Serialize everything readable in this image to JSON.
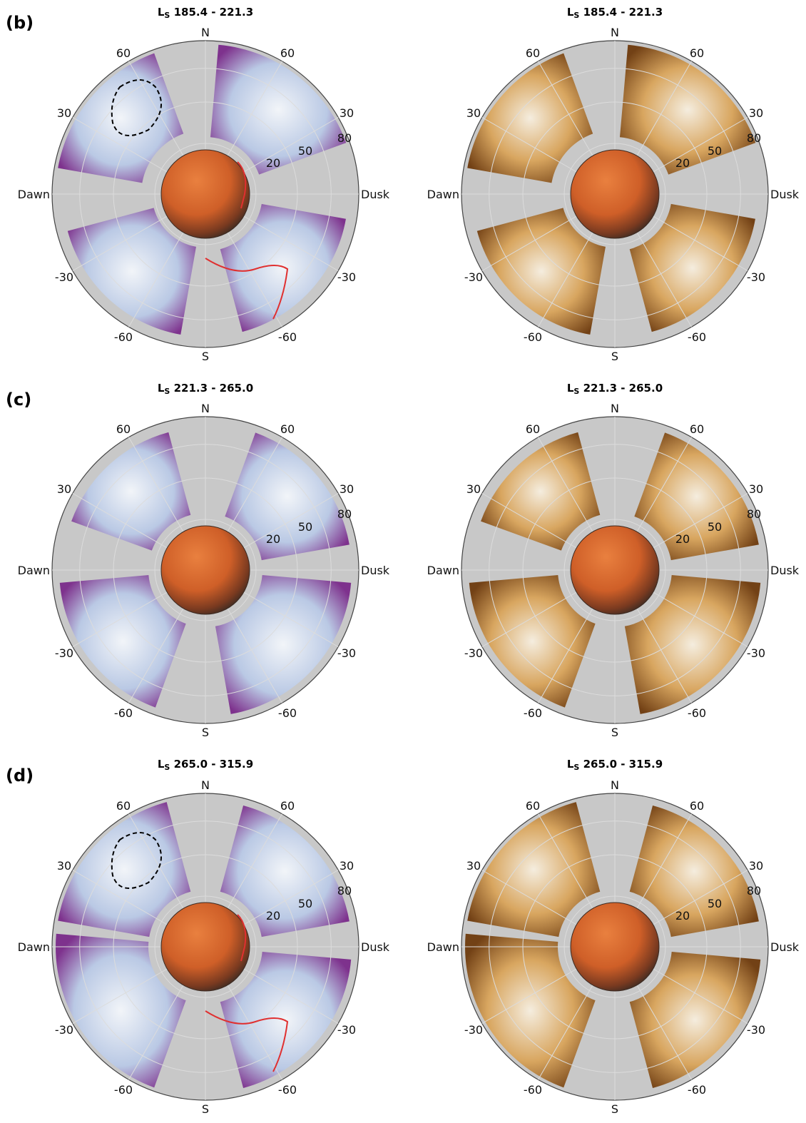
{
  "rows": [
    {
      "label": "(b)",
      "left_title": {
        "main": "L",
        "sub": "S",
        "range": " 185.4 - 221.3"
      },
      "right_title": {
        "main": "L",
        "sub": "S",
        "range": " 185.4 - 221.3"
      }
    },
    {
      "label": "(c)",
      "left_title": {
        "main": "L",
        "sub": "S",
        "range": " 221.3 - 265.0"
      },
      "right_title": {
        "main": "L",
        "sub": "S",
        "range": " 221.3 - 265.0"
      }
    },
    {
      "label": "(d)",
      "left_title": {
        "main": "L",
        "sub": "S",
        "range": " 265.0 - 315.9"
      },
      "right_title": {
        "main": "L",
        "sub": "S",
        "range": " 265.0 - 315.9"
      }
    }
  ],
  "axes": {
    "north": "N",
    "south": "S",
    "dawn": "Dawn",
    "dusk": "Dusk",
    "lat_ticks_top": [
      "60",
      "30"
    ],
    "lat_ticks_bottom": [
      "-30",
      "-60"
    ],
    "radial_ticks": [
      "80",
      "50",
      "20"
    ]
  },
  "colors": {
    "background_disk": "#c8c8c8",
    "grid": "#dcdcdc",
    "mars": "#d4632a",
    "purple_high": "#7a2a8a",
    "blue_low": "#dfe9f4",
    "brown_high": "#6e3a0c",
    "tan_low": "#f3e3c0",
    "contour_red": "#e03030",
    "contour_black": "#000000"
  }
}
